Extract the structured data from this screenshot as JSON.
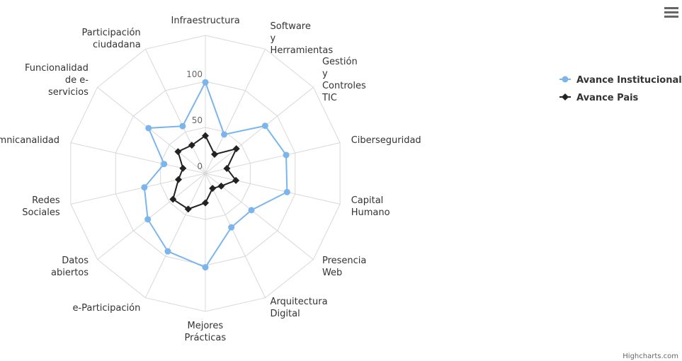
{
  "chart_data": {
    "type": "line",
    "polar": true,
    "categories": [
      "Infraestructura",
      "Software\ny\nHerramientas",
      "Gestión\ny\nControles\nTIC",
      "Ciberseguridad",
      "Capital\nHumano",
      "Presencia\nWeb",
      "Arquitectura\nDigital",
      "Mejores\nPrácticas",
      "e-Participación",
      "Datos\nabiertos",
      "Redes\nSociales",
      "Omnicanalidad",
      "Funcionalidad\nde e-\nservicios",
      "Participación\nciudadana"
    ],
    "series": [
      {
        "name": "Avance Institucional",
        "color": "#7cb5ec",
        "marker": "circle",
        "values": [
          99,
          47,
          83,
          90,
          91,
          64,
          65,
          102,
          94,
          80,
          68,
          46,
          79,
          57
        ]
      },
      {
        "name": "Avance Pais",
        "color": "#222222",
        "marker": "diamond",
        "values": [
          41,
          23,
          43,
          24,
          34,
          22,
          18,
          32,
          43,
          45,
          30,
          25,
          38,
          34
        ]
      }
    ],
    "ylim": [
      0,
      150
    ],
    "yticks": [
      0,
      50,
      100
    ],
    "grid": true,
    "legend": "right",
    "credits": "Highcharts.com"
  }
}
